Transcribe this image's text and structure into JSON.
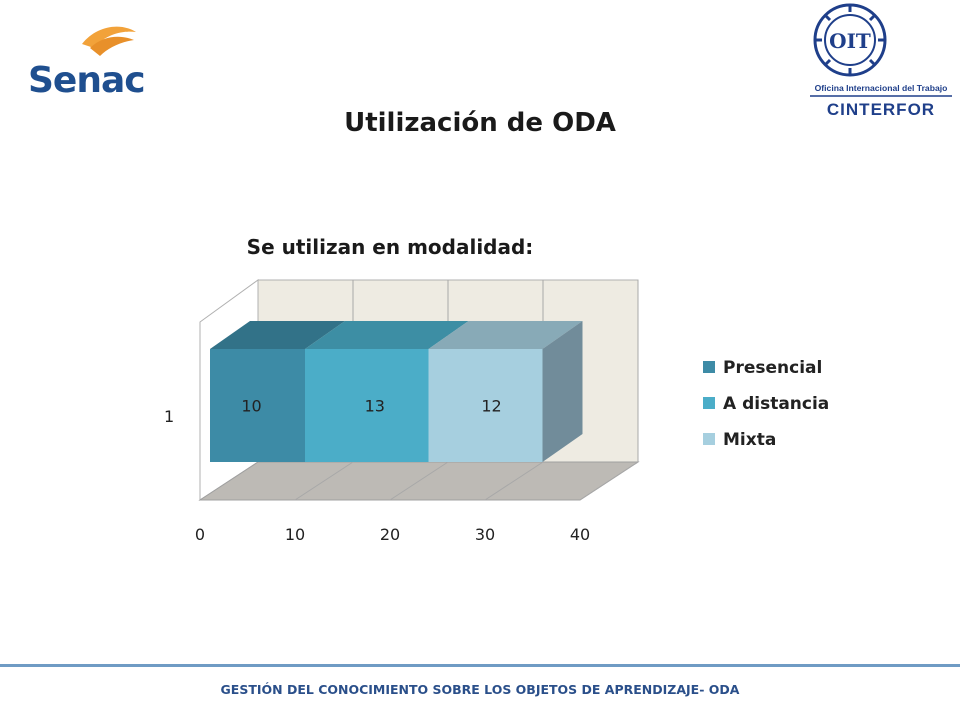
{
  "logos": {
    "left": {
      "text": "Senac",
      "icon": "senac-logo"
    },
    "right": {
      "seal_text": "OIT",
      "line1": "Oficina Internacional del Trabajo",
      "line2": "CINTERFOR",
      "icon": "oit-cinterfor-logo"
    }
  },
  "slide_title": "Utilización de ODA",
  "chart_data": {
    "type": "bar",
    "orientation": "horizontal",
    "stacked": true,
    "three_d": true,
    "title": "Se utilizan en modalidad:",
    "categories": [
      "1"
    ],
    "series": [
      {
        "name": "Presencial",
        "values": [
          10
        ],
        "color": "#3d8ba6"
      },
      {
        "name": "A distancia",
        "values": [
          13
        ],
        "color": "#4badc8"
      },
      {
        "name": "Mixta",
        "values": [
          12
        ],
        "color": "#a6cfdf"
      }
    ],
    "data_labels": [
      "10",
      "13",
      "12"
    ],
    "x_ticks": [
      "0",
      "10",
      "20",
      "30",
      "40"
    ],
    "xlim": [
      0,
      40
    ],
    "grid": true,
    "legend_position": "right"
  },
  "footer": "GESTIÓN DEL CONOCIMIENTO SOBRE LOS OBJETOS DE APRENDIZAJE- ODA"
}
